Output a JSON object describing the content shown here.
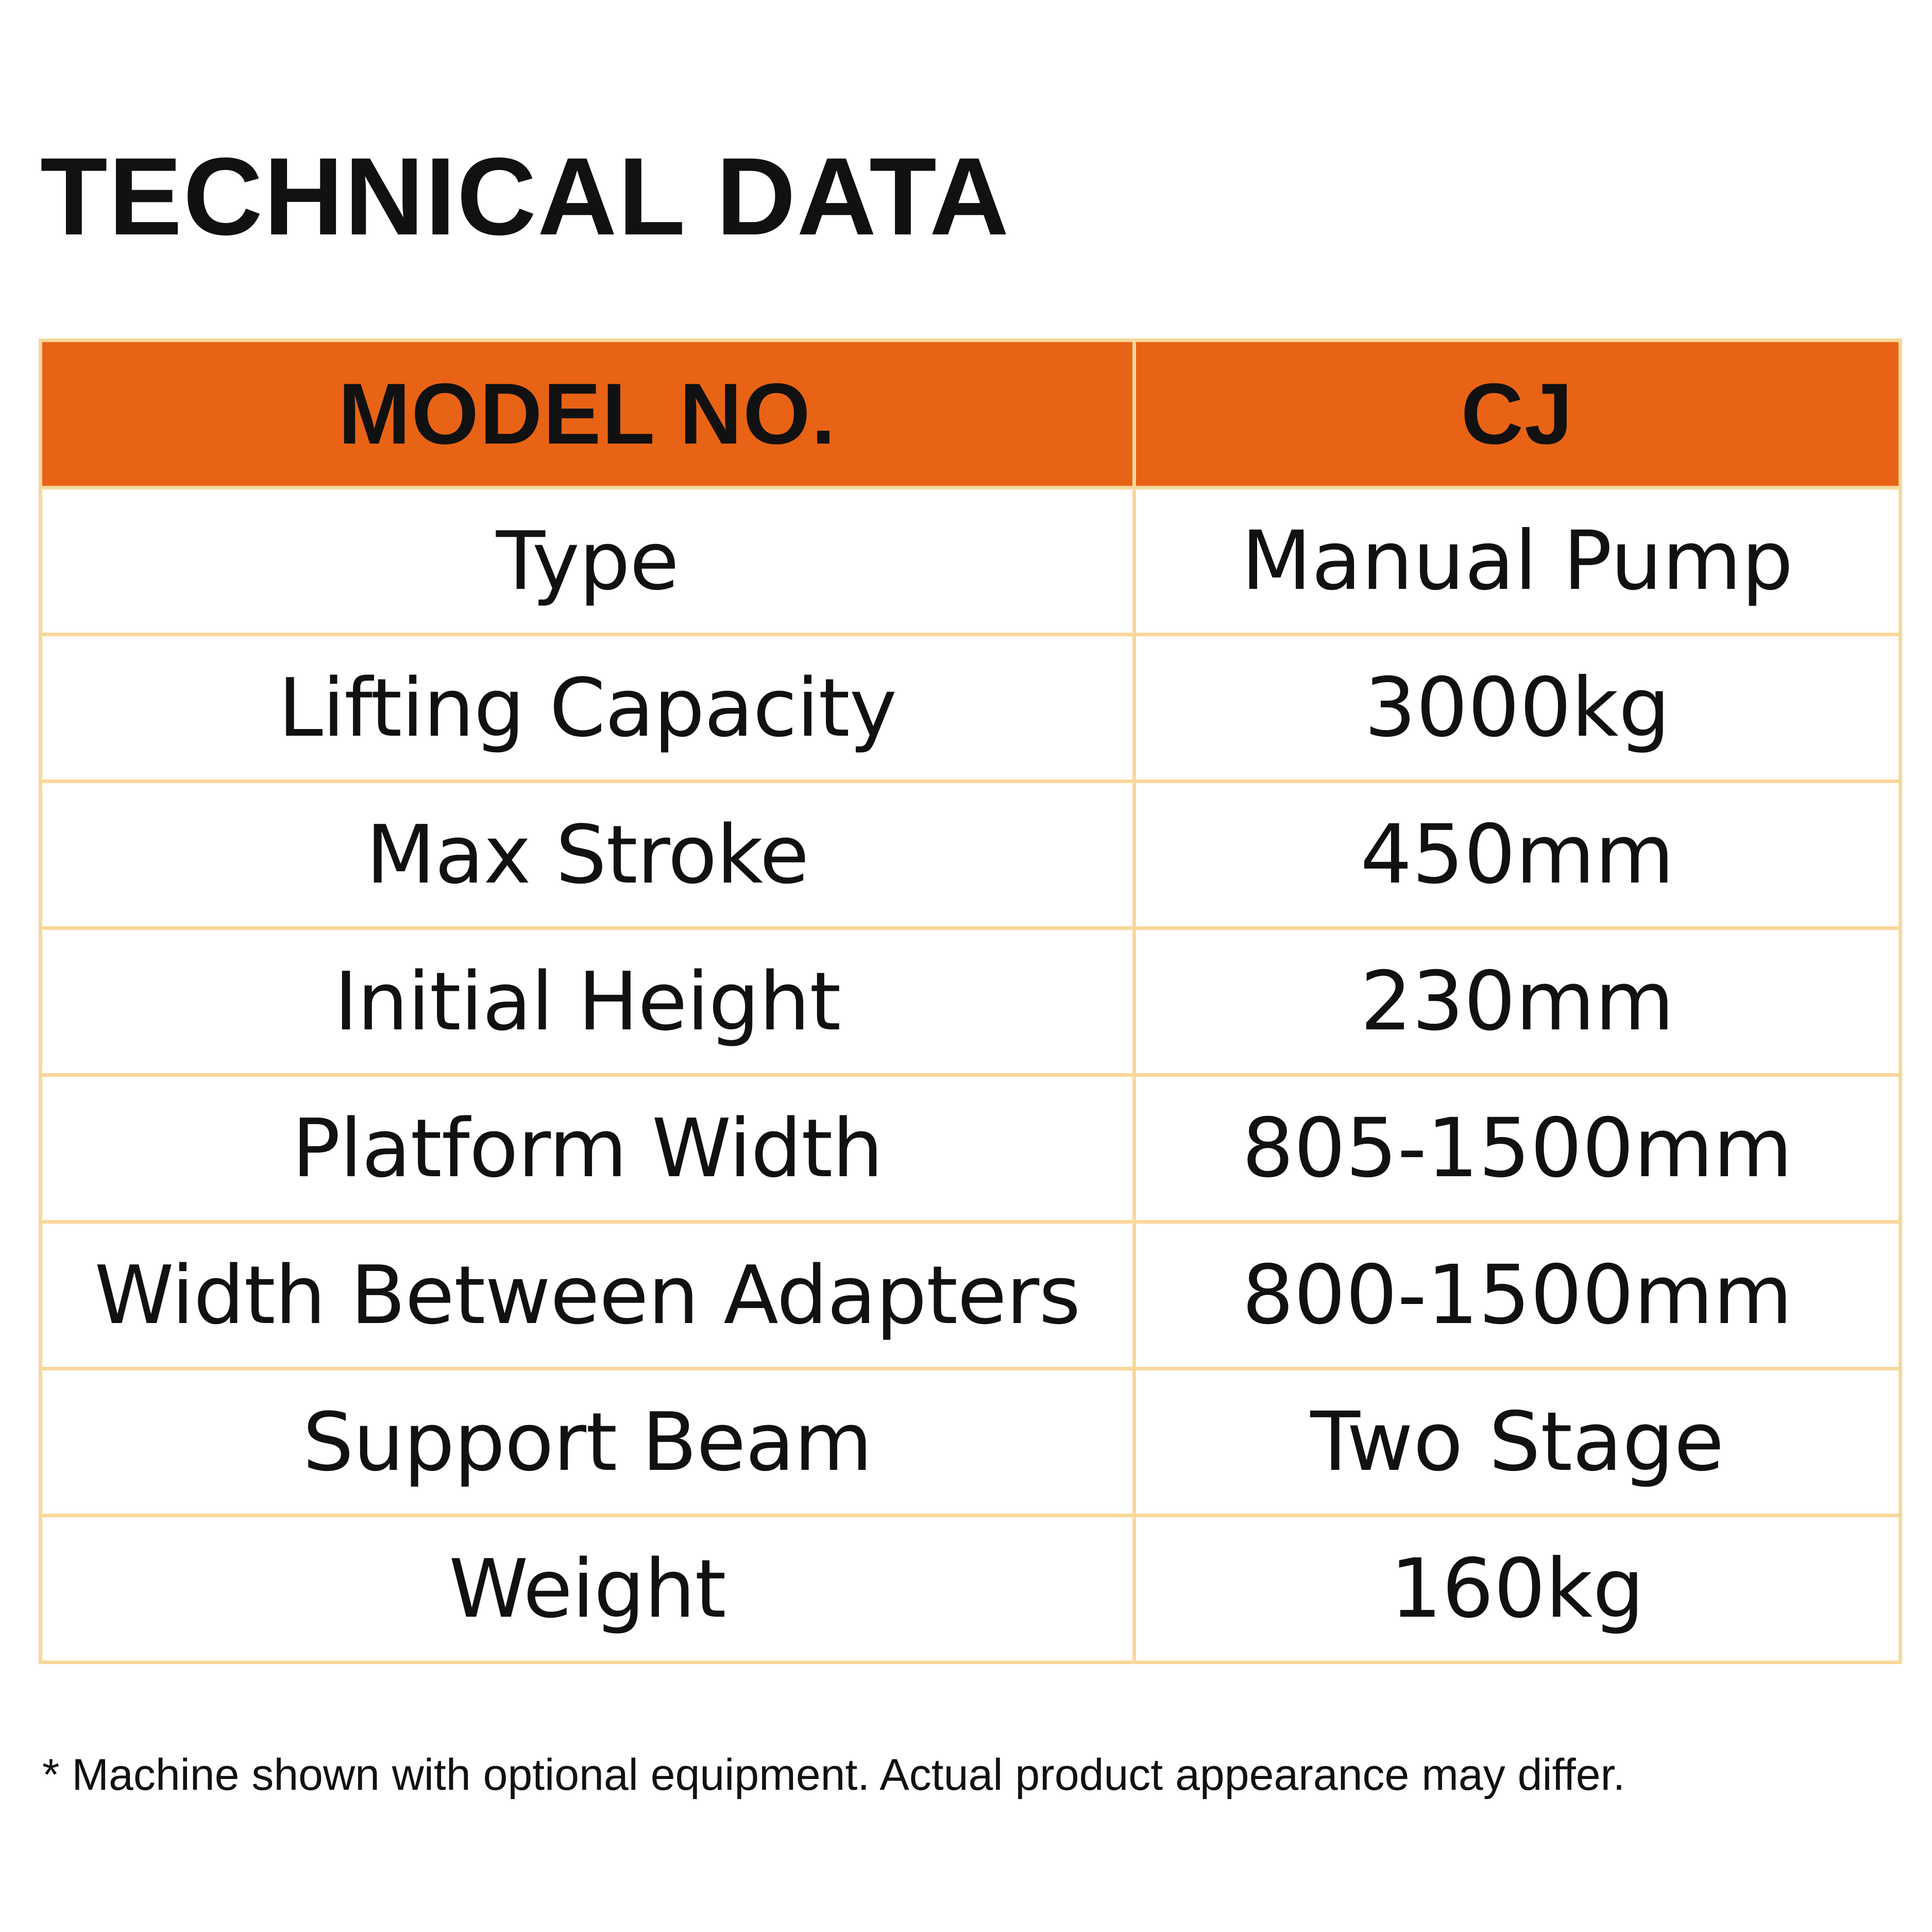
{
  "title": "TECHNICAL DATA",
  "colors": {
    "header_bg": "#e86315",
    "border": "#f9d79b",
    "text": "#111111",
    "background": "#ffffff"
  },
  "table": {
    "headers": [
      "MODEL NO.",
      "CJ"
    ],
    "rows": [
      {
        "label": "Type",
        "value": "Manual Pump"
      },
      {
        "label": "Lifting Capacity",
        "value": "3000kg"
      },
      {
        "label": "Max Stroke",
        "value": "450mm"
      },
      {
        "label": "Initial Height",
        "value": "230mm"
      },
      {
        "label": "Platform Width",
        "value": "805-1500mm"
      },
      {
        "label": "Width Between Adapters",
        "value": "800-1500mm"
      },
      {
        "label": "Support Beam",
        "value": "Two Stage"
      },
      {
        "label": "Weight",
        "value": "160kg"
      }
    ]
  },
  "footnote": "* Machine shown with optional equipment. Actual product appearance may differ."
}
